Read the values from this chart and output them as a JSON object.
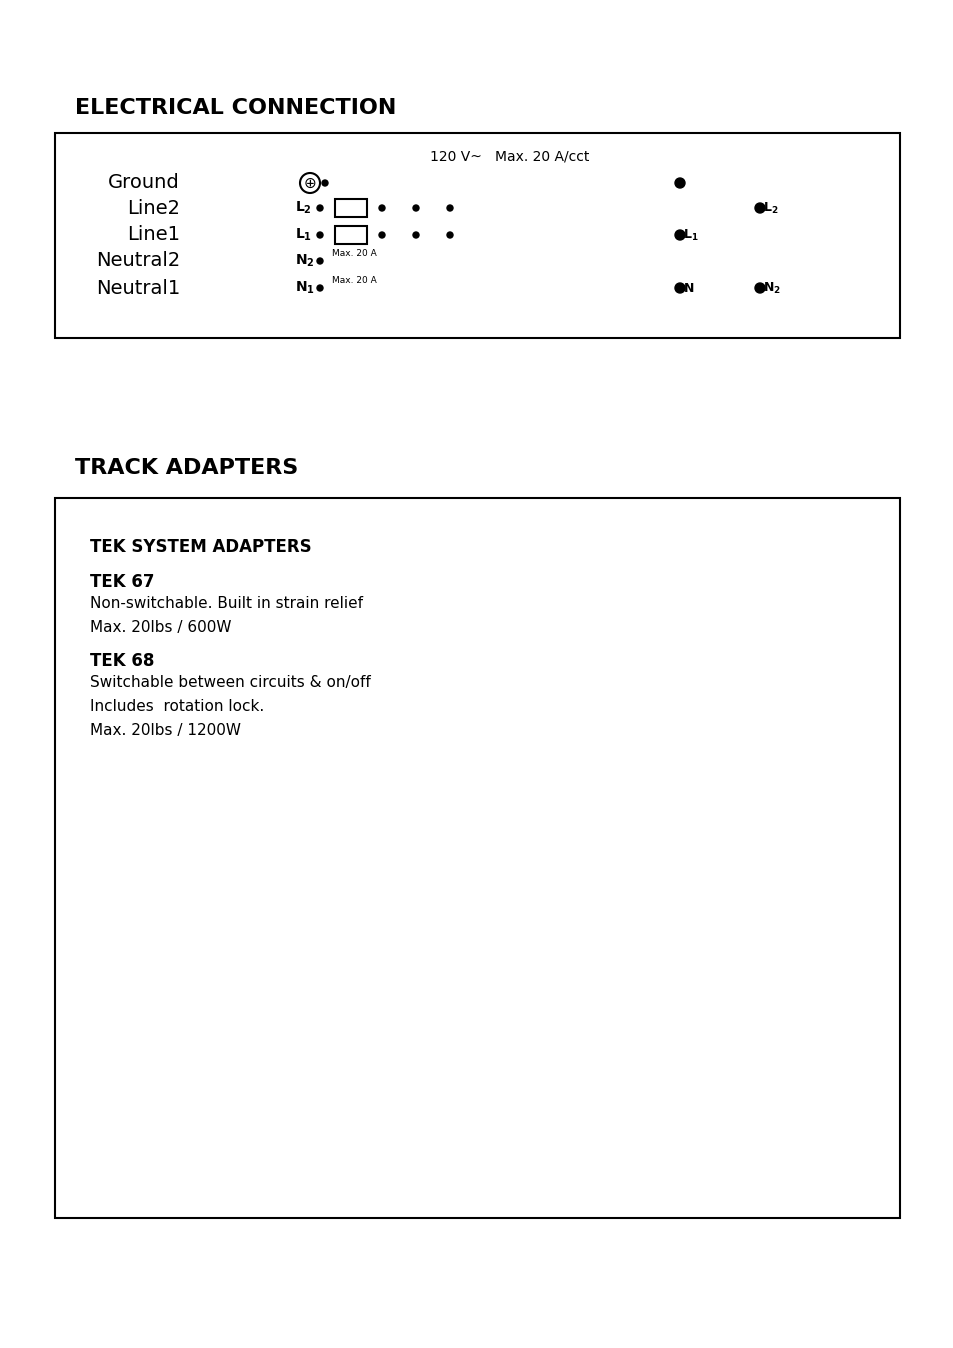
{
  "title_electrical": "ELECTRICAL CONNECTION",
  "title_track": "TRACK ADAPTERS",
  "voltage_label": "120 V~   Max. 20 A/cct",
  "wire_labels_left": [
    "Ground",
    "Line2",
    "Line1",
    "Neutral2",
    "Neutral1"
  ],
  "wire_symbols_left": [
    "L₂",
    "L₁",
    "N₂",
    "N₁"
  ],
  "max20a_labels": [
    "Max. 20 A",
    "Max. 20 A"
  ],
  "track_label1": "L₁",
  "track_label2": "L₂",
  "track_label_n": "N",
  "track_label_n2": "N₂",
  "tek_system": "TEK SYSTEM ADAPTERS",
  "tek67_title": "TEK 67",
  "tek67_line1": "Non-switchable. Built in strain relief",
  "tek67_line2": "Max. 20lbs / 600W",
  "tek68_title": "TEK 68",
  "tek68_line1": "Switchable between circuits & on/off",
  "tek68_line2": "Includes  rotation lock.",
  "tek68_line3": "Max. 20lbs / 1200W",
  "bg_color": "#ffffff",
  "line_color": "#000000",
  "box_border_color": "#000000"
}
